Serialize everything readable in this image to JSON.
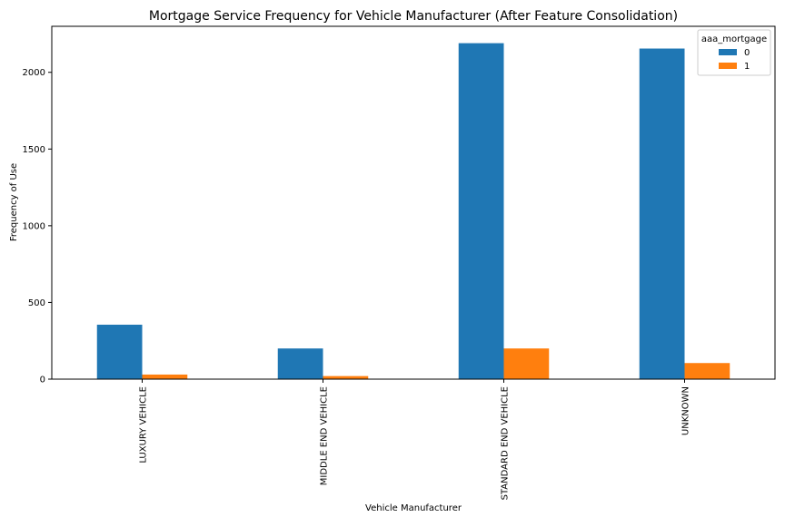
{
  "chart_data": {
    "type": "bar",
    "title": "Mortgage Service Frequency for Vehicle Manufacturer (After Feature Consolidation)",
    "xlabel": "Vehicle Manufacturer",
    "ylabel": "Frequency of Use",
    "categories": [
      "LUXURY VEHICLE",
      "MIDDLE END VEHICLE",
      "STANDARD END VEHICLE",
      "UNKNOWN"
    ],
    "series": [
      {
        "name": "0",
        "values": [
          355,
          200,
          2190,
          2155
        ],
        "color": "#1f77b4"
      },
      {
        "name": "1",
        "values": [
          30,
          20,
          200,
          105
        ],
        "color": "#ff7f0e"
      }
    ],
    "ylim": [
      0,
      2300
    ],
    "yticks": [
      0,
      500,
      1000,
      1500,
      2000
    ],
    "legend": {
      "title": "aaa_mortgage",
      "position": "top-right"
    },
    "grid": false
  }
}
